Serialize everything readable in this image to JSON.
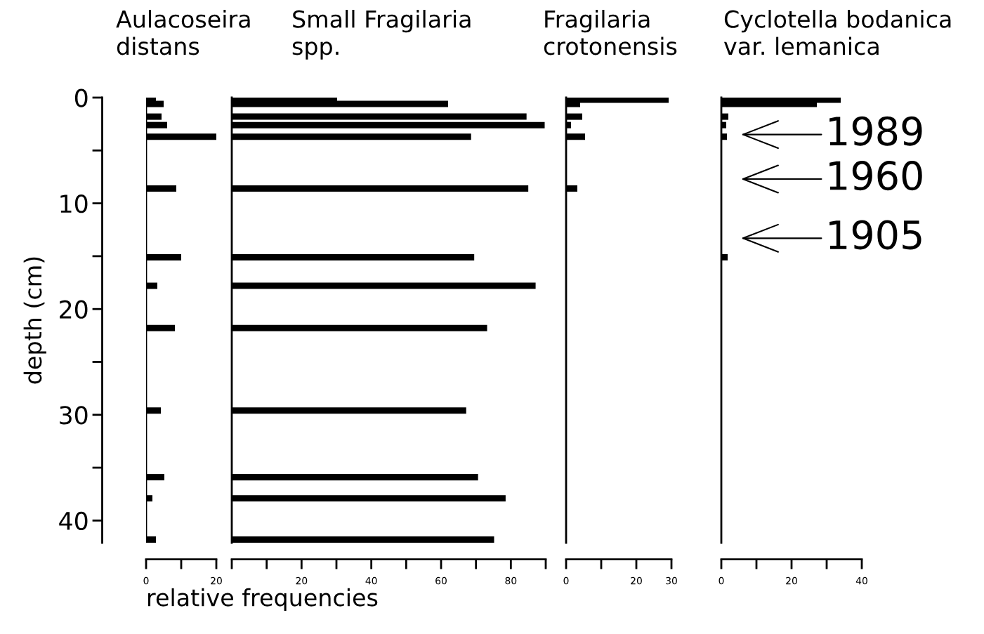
{
  "chart_data": [
    {
      "type": "bar",
      "orientation": "horizontal",
      "title": "Aulacoseira\ndistans",
      "ylabel": "depth (cm)",
      "xlabel": "relative frequencies",
      "color": "#000000",
      "x": [
        0.2,
        0.6,
        1.8,
        2.6,
        3.7,
        8.6,
        15.1,
        17.8,
        21.8,
        29.6,
        35.9,
        37.9,
        41.8
      ],
      "values": [
        2.8,
        5,
        4.4,
        6,
        20,
        8.6,
        10,
        3.2,
        8.2,
        4.2,
        5.2,
        1.8,
        2.8
      ],
      "xlim": [
        0,
        20
      ],
      "xticks": [
        0,
        20
      ],
      "ylim": [
        42.1,
        0
      ],
      "yticks": [
        0,
        10,
        20,
        30,
        40
      ]
    },
    {
      "type": "bar",
      "orientation": "horizontal",
      "title": "Small Fragilaria\nspp.",
      "color": "#000000",
      "x": [
        0.2,
        0.6,
        1.8,
        2.6,
        3.7,
        8.6,
        15.1,
        17.8,
        21.8,
        29.6,
        35.9,
        37.9,
        41.8
      ],
      "values": [
        30.2,
        62,
        84.5,
        89.7,
        68.6,
        85,
        69.5,
        87.1,
        73.2,
        67.2,
        70.6,
        78.5,
        75.2
      ],
      "xlim": [
        0,
        90
      ],
      "xticks": [
        20,
        40,
        60,
        80
      ],
      "ylim": [
        42.1,
        0
      ]
    },
    {
      "type": "bar",
      "orientation": "horizontal",
      "title": "Fragilaria\ncrotonensis",
      "color": "#000000",
      "x": [
        0.2,
        0.6,
        1.8,
        2.6,
        3.7,
        8.6
      ],
      "values": [
        29.2,
        4,
        4.6,
        1.4,
        5.4,
        3.2
      ],
      "xlim": [
        0,
        30
      ],
      "xticks": [
        0,
        20,
        30
      ],
      "ylim": [
        42.1,
        0
      ]
    },
    {
      "type": "bar",
      "orientation": "horizontal",
      "title": "Cyclotella bodanica\nvar. lemanica",
      "color": "#000000",
      "x": [
        0.2,
        0.6,
        1.8,
        2.6,
        3.7,
        15.1
      ],
      "values": [
        34,
        27.2,
        2,
        1.4,
        1.6,
        1.8
      ],
      "xlim": [
        0,
        40
      ],
      "xticks": [
        0,
        20,
        40
      ],
      "ylim": [
        42.1,
        0
      ],
      "annotations": [
        "1989",
        "1960",
        "1905"
      ]
    }
  ]
}
